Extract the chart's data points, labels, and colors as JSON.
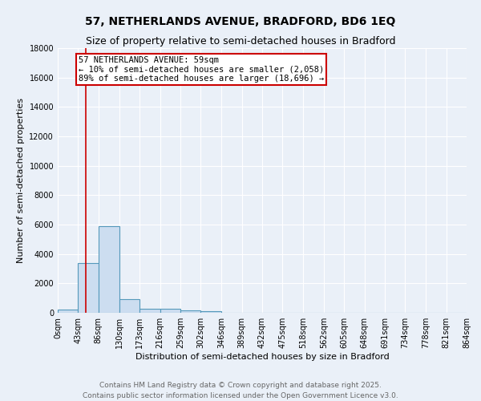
{
  "title_line1": "57, NETHERLANDS AVENUE, BRADFORD, BD6 1EQ",
  "title_line2": "Size of property relative to semi-detached houses in Bradford",
  "xlabel": "Distribution of semi-detached houses by size in Bradford",
  "ylabel": "Number of semi-detached properties",
  "bin_edges": [
    0,
    43,
    86,
    130,
    173,
    216,
    259,
    302,
    346,
    389,
    432,
    475,
    518,
    562,
    605,
    648,
    691,
    734,
    778,
    821,
    864
  ],
  "bar_heights": [
    200,
    3400,
    5900,
    950,
    290,
    290,
    150,
    120,
    10,
    5,
    0,
    0,
    0,
    0,
    0,
    0,
    0,
    0,
    0,
    0
  ],
  "bar_color": "#ccddf0",
  "bar_edge_color": "#5599bb",
  "property_size": 59,
  "red_line_color": "#cc0000",
  "annotation_text": "57 NETHERLANDS AVENUE: 59sqm\n← 10% of semi-detached houses are smaller (2,058)\n89% of semi-detached houses are larger (18,696) →",
  "annotation_box_color": "#ffffff",
  "annotation_box_edge": "#cc0000",
  "ylim": [
    0,
    18000
  ],
  "yticks": [
    0,
    2000,
    4000,
    6000,
    8000,
    10000,
    12000,
    14000,
    16000,
    18000
  ],
  "background_color": "#eaf0f8",
  "grid_color": "#ffffff",
  "footer_line1": "Contains HM Land Registry data © Crown copyright and database right 2025.",
  "footer_line2": "Contains public sector information licensed under the Open Government Licence v3.0.",
  "title_fontsize": 10,
  "subtitle_fontsize": 9,
  "axis_label_fontsize": 8,
  "tick_fontsize": 7,
  "annotation_fontsize": 7.5,
  "footer_fontsize": 6.5
}
